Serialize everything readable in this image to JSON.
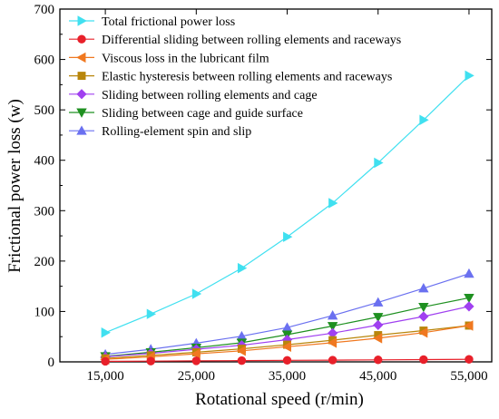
{
  "chart_data": {
    "type": "line",
    "xlabel": "Rotational speed (r/min)",
    "ylabel": "Frictional power loss (w)",
    "xlim": [
      10000,
      57500
    ],
    "ylim": [
      0,
      700
    ],
    "xticks": [
      15000,
      25000,
      35000,
      45000,
      55000
    ],
    "xtick_labels": [
      "15,000",
      "25,000",
      "35,000",
      "45,000",
      "55,000"
    ],
    "yticks": [
      0,
      100,
      200,
      300,
      400,
      500,
      600,
      700
    ],
    "ytick_labels": [
      "0",
      "100",
      "200",
      "300",
      "400",
      "500",
      "600",
      "700"
    ],
    "grid": false,
    "legend": "top-left",
    "x": [
      15000,
      20000,
      25000,
      30000,
      35000,
      40000,
      45000,
      50000,
      55000
    ],
    "series": [
      {
        "name": "Total frictional power loss",
        "color": "#40e0f0",
        "marker": "triangle-right",
        "values": [
          58,
          95,
          135,
          186,
          248,
          315,
          395,
          480,
          568
        ]
      },
      {
        "name": "Differential sliding between rolling elements and raceways",
        "color": "#e8202a",
        "marker": "circle",
        "values": [
          1,
          1.5,
          2,
          2.5,
          3,
          3.5,
          4,
          4.5,
          5
        ]
      },
      {
        "name": "Viscous loss in the lubricant film",
        "color": "#f07820",
        "marker": "triangle-left",
        "values": [
          5,
          10,
          16,
          22,
          30,
          38,
          47,
          58,
          72
        ]
      },
      {
        "name": "Elastic hysteresis between rolling elements and raceways",
        "color": "#b8860b",
        "marker": "square",
        "values": [
          7,
          13,
          19,
          26,
          34,
          43,
          53,
          62,
          72
        ]
      },
      {
        "name": "Sliding between rolling elements and cage",
        "color": "#a040f0",
        "marker": "diamond",
        "values": [
          10,
          17,
          25,
          33,
          44,
          57,
          73,
          90,
          110
        ]
      },
      {
        "name": "Sliding between cage and guide surface",
        "color": "#1e9020",
        "marker": "triangle-down",
        "values": [
          11,
          19,
          28,
          38,
          54,
          71,
          89,
          109,
          127
        ]
      },
      {
        "name": "Rolling-element spin and slip",
        "color": "#6a70f0",
        "marker": "triangle-up",
        "values": [
          15,
          25,
          37,
          51,
          68,
          92,
          118,
          146,
          175
        ]
      }
    ]
  }
}
